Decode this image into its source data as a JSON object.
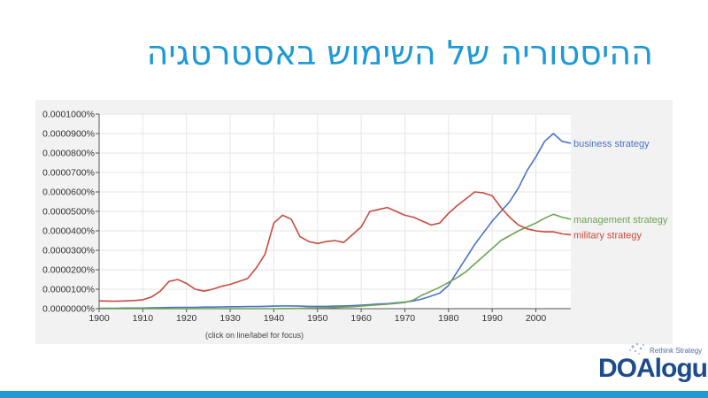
{
  "slide": {
    "title": "ההיסטוריה של השימוש באסטרטגיה"
  },
  "chart_note": "(click on line/label for focus)",
  "logo": {
    "text": "DOAlogue",
    "tagline": "Rethink Strategy",
    "color": "#1d4c8c"
  },
  "chart_data": {
    "type": "line",
    "x": [
      1900,
      1902,
      1904,
      1906,
      1908,
      1910,
      1912,
      1914,
      1916,
      1918,
      1920,
      1922,
      1924,
      1926,
      1928,
      1930,
      1932,
      1934,
      1936,
      1938,
      1940,
      1942,
      1944,
      1946,
      1948,
      1950,
      1952,
      1954,
      1956,
      1958,
      1960,
      1962,
      1964,
      1966,
      1968,
      1970,
      1972,
      1974,
      1976,
      1978,
      1980,
      1982,
      1984,
      1986,
      1988,
      1990,
      1992,
      1994,
      1996,
      1998,
      2000,
      2002,
      2004,
      2006,
      2008
    ],
    "xlim": [
      1900,
      2008
    ],
    "xticks": [
      "1900",
      "1910",
      "1920",
      "1930",
      "1940",
      "1950",
      "1960",
      "1970",
      "1980",
      "1990",
      "2000"
    ],
    "ylim": [
      0,
      0.0001
    ],
    "yticks": [
      "0.0000000%",
      "0.0000100%",
      "0.0000200%",
      "0.0000300%",
      "0.0000400%",
      "0.0000500%",
      "0.0000600%",
      "0.0000700%",
      "0.0000800%",
      "0.0000900%",
      "0.0001000%"
    ],
    "series": [
      {
        "name": "business strategy",
        "color": "#4a72c9",
        "values": [
          2e-07,
          2e-07,
          2e-07,
          3e-07,
          3e-07,
          3e-07,
          4e-07,
          5e-07,
          6e-07,
          7e-07,
          7e-07,
          7e-07,
          8e-07,
          8e-07,
          9e-07,
          1e-06,
          1e-06,
          1.1e-06,
          1.1e-06,
          1.2e-06,
          1.3e-06,
          1.4e-06,
          1.4e-06,
          1.3e-06,
          1.2e-06,
          1.2e-06,
          1.2e-06,
          1.3e-06,
          1.4e-06,
          1.6e-06,
          1.8e-06,
          2.1e-06,
          2.4e-06,
          2.6e-06,
          3e-06,
          3.4e-06,
          4e-06,
          5e-06,
          6.5e-06,
          8e-06,
          1.2e-05,
          1.9e-05,
          2.6e-05,
          3.3e-05,
          3.9e-05,
          4.5e-05,
          5e-05,
          5.5e-05,
          6.2e-05,
          7.1e-05,
          7.8e-05,
          8.6e-05,
          9e-05,
          8.6e-05,
          8.5e-05
        ]
      },
      {
        "name": "management strategy",
        "color": "#6fa253",
        "values": [
          0,
          0,
          0,
          0,
          0,
          0,
          0,
          0,
          0,
          0,
          0,
          0,
          0,
          0,
          0,
          0,
          0,
          0,
          0,
          0,
          0,
          1e-07,
          1e-07,
          2e-07,
          3e-07,
          4e-07,
          5e-07,
          6e-07,
          8e-07,
          1e-06,
          1.3e-06,
          1.7e-06,
          2e-06,
          2.3e-06,
          2.7e-06,
          3.2e-06,
          4.5e-06,
          7e-06,
          9e-06,
          1.1e-05,
          1.35e-05,
          1.6e-05,
          1.9e-05,
          2.3e-05,
          2.7e-05,
          3.1e-05,
          3.5e-05,
          3.75e-05,
          4e-05,
          4.2e-05,
          4.4e-05,
          4.65e-05,
          4.85e-05,
          4.7e-05,
          4.6e-05
        ]
      },
      {
        "name": "military strategy",
        "color": "#c84b3e",
        "values": [
          4e-06,
          3.9e-06,
          3.8e-06,
          4e-06,
          4.2e-06,
          4.6e-06,
          6e-06,
          9e-06,
          1.4e-05,
          1.5e-05,
          1.3e-05,
          1e-05,
          9e-06,
          1e-05,
          1.15e-05,
          1.25e-05,
          1.4e-05,
          1.55e-05,
          2.1e-05,
          2.8e-05,
          4.4e-05,
          4.8e-05,
          4.6e-05,
          3.7e-05,
          3.45e-05,
          3.35e-05,
          3.45e-05,
          3.5e-05,
          3.4e-05,
          3.8e-05,
          4.2e-05,
          5e-05,
          5.1e-05,
          5.2e-05,
          5e-05,
          4.8e-05,
          4.7e-05,
          4.5e-05,
          4.3e-05,
          4.4e-05,
          4.9e-05,
          5.3e-05,
          5.65e-05,
          6e-05,
          5.95e-05,
          5.8e-05,
          5.2e-05,
          4.7e-05,
          4.3e-05,
          4.1e-05,
          4e-05,
          3.95e-05,
          3.95e-05,
          3.85e-05,
          3.8e-05
        ]
      }
    ],
    "grid": true,
    "legend": "right-end-labels",
    "background": "#ffffff"
  }
}
